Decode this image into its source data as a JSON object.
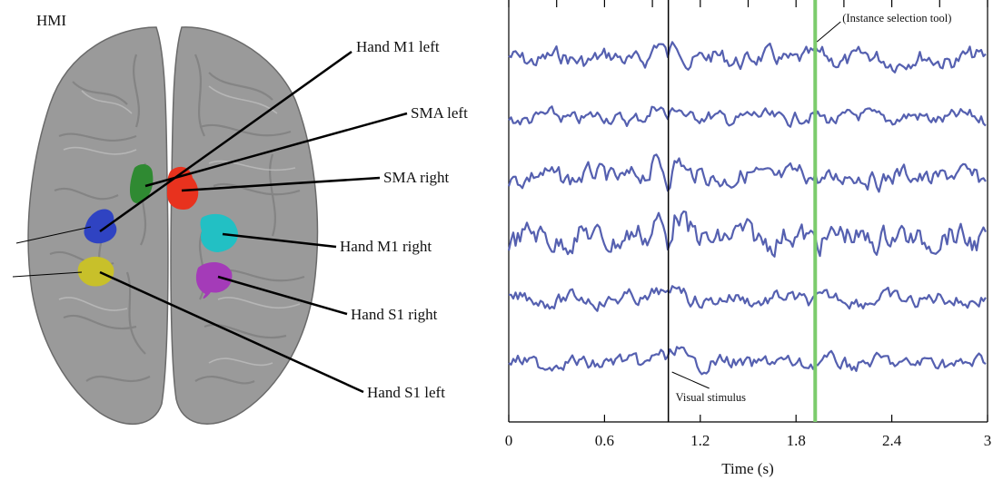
{
  "panel_label": "HMI",
  "regions": [
    {
      "label": "Hand M1 left",
      "color": "#2f43c2"
    },
    {
      "label": "SMA left",
      "color": "#2f8a32"
    },
    {
      "label": "SMA right",
      "color": "#e8321e"
    },
    {
      "label": "Hand M1 right",
      "color": "#22c0c4"
    },
    {
      "label": "Hand S1 right",
      "color": "#a43bb8"
    },
    {
      "label": "Hand S1 left",
      "color": "#c8c02a"
    }
  ],
  "chart_data": {
    "type": "line",
    "xlabel": "Time (s)",
    "xlim": [
      0,
      3
    ],
    "xticks": [
      "0",
      "0.6",
      "1.2",
      "1.8",
      "2.4",
      "3"
    ],
    "trace_count": 6,
    "trace_color": "#5560b0",
    "annotations": [
      {
        "label": "Visual stimulus",
        "x": 1.0,
        "color": "#000000"
      },
      {
        "label": "(Instance selection tool)",
        "x": 1.92,
        "color": "#7ccc6c"
      }
    ]
  }
}
